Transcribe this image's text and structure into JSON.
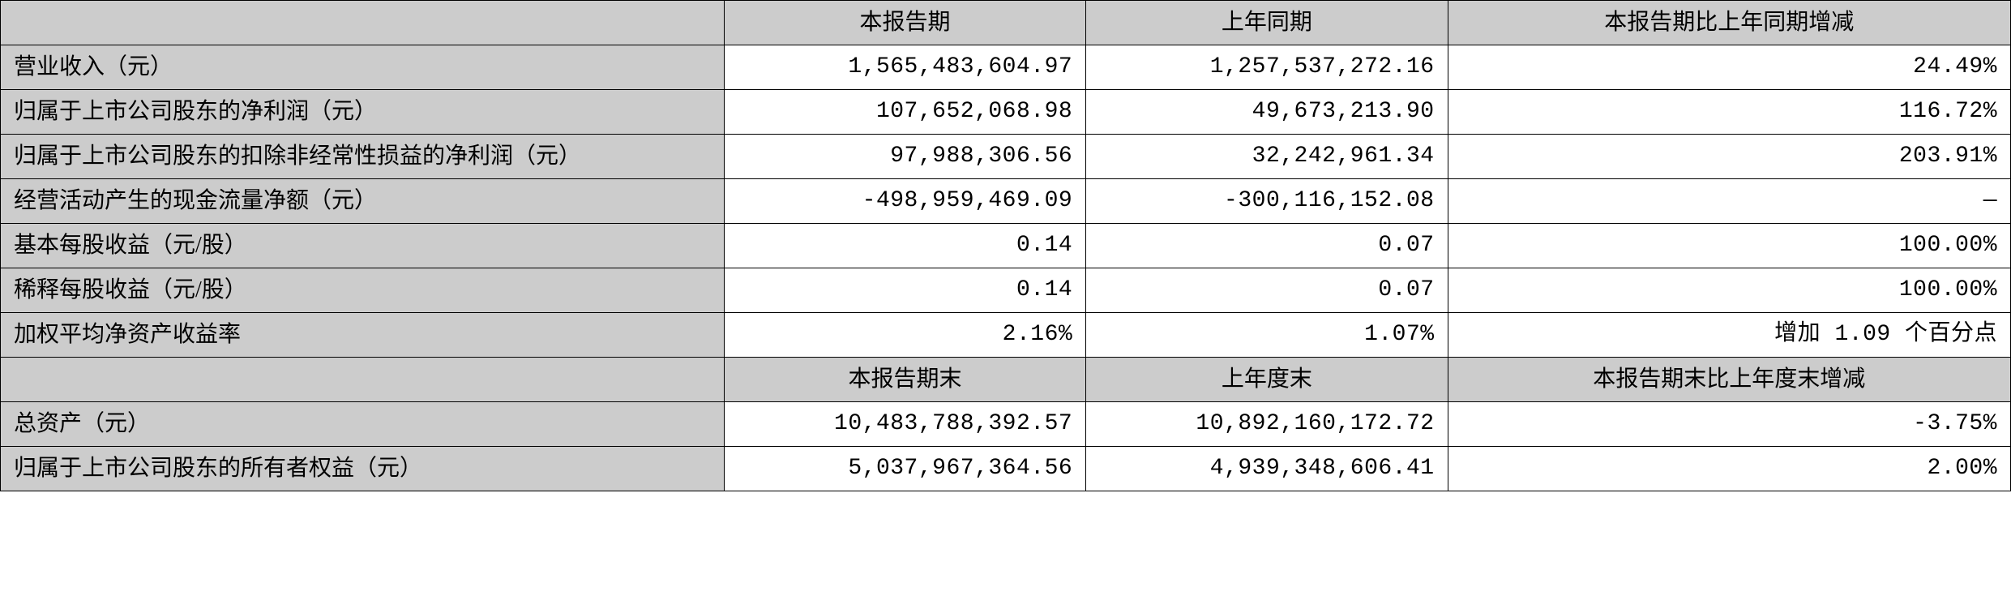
{
  "table": {
    "background_color": "#ffffff",
    "header_bg": "#cccccc",
    "label_bg": "#cccccc",
    "border_color": "#000000",
    "font_size": 28,
    "columns": {
      "label_width_pct": 36,
      "col1_width_pct": 18,
      "col2_width_pct": 18,
      "col3_width_pct": 28
    },
    "section1": {
      "headers": {
        "blank": "",
        "col1": "本报告期",
        "col2": "上年同期",
        "col3": "本报告期比上年同期增减"
      },
      "rows": [
        {
          "label": "营业收入（元）",
          "v1": "1,565,483,604.97",
          "v2": "1,257,537,272.16",
          "v3": "24.49%"
        },
        {
          "label": "归属于上市公司股东的净利润（元）",
          "v1": "107,652,068.98",
          "v2": "49,673,213.90",
          "v3": "116.72%"
        },
        {
          "label": "归属于上市公司股东的扣除非经常性损益的净利润（元）",
          "v1": "97,988,306.56",
          "v2": "32,242,961.34",
          "v3": "203.91%"
        },
        {
          "label": "经营活动产生的现金流量净额（元）",
          "v1": "-498,959,469.09",
          "v2": "-300,116,152.08",
          "v3": "—"
        },
        {
          "label": "基本每股收益（元/股）",
          "v1": "0.14",
          "v2": "0.07",
          "v3": "100.00%"
        },
        {
          "label": "稀释每股收益（元/股）",
          "v1": "0.14",
          "v2": "0.07",
          "v3": "100.00%"
        },
        {
          "label": "加权平均净资产收益率",
          "v1": "2.16%",
          "v2": "1.07%",
          "v3": "增加 1.09 个百分点"
        }
      ]
    },
    "section2": {
      "headers": {
        "blank": "",
        "col1": "本报告期末",
        "col2": "上年度末",
        "col3": "本报告期末比上年度末增减"
      },
      "rows": [
        {
          "label": "总资产（元）",
          "v1": "10,483,788,392.57",
          "v2": "10,892,160,172.72",
          "v3": "-3.75%"
        },
        {
          "label": "归属于上市公司股东的所有者权益（元）",
          "v1": "5,037,967,364.56",
          "v2": "4,939,348,606.41",
          "v3": "2.00%"
        }
      ]
    }
  }
}
